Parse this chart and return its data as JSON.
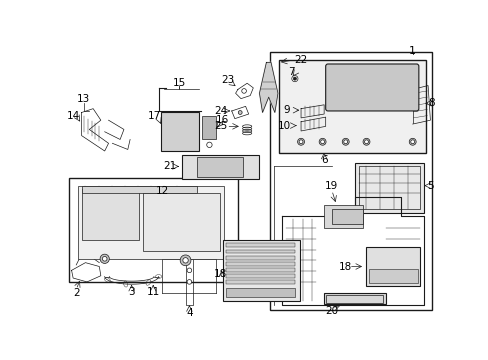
{
  "bg_color": "#ffffff",
  "line_color": "#1a1a1a",
  "fig_width": 4.89,
  "fig_height": 3.6,
  "dpi": 100,
  "gray_light": "#d8d8d8",
  "gray_mid": "#c0c0c0",
  "gray_fill": "#e8e8e8"
}
